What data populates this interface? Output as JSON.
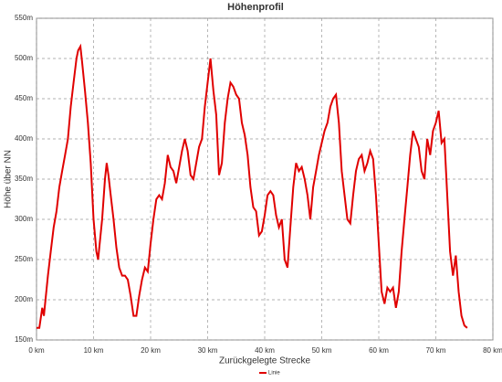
{
  "chart_data": {
    "type": "line",
    "title": "Höhenprofil",
    "x_label": "Zurückgelegte Strecke",
    "y_label": "Höhe über NN",
    "xlim": [
      0,
      80
    ],
    "ylim": [
      150,
      550
    ],
    "xticks": [
      {
        "value": 0,
        "label": "0 km"
      },
      {
        "value": 10,
        "label": "10 km"
      },
      {
        "value": 20,
        "label": "20 km"
      },
      {
        "value": 30,
        "label": "30 km"
      },
      {
        "value": 40,
        "label": "40 km"
      },
      {
        "value": 50,
        "label": "50 km"
      },
      {
        "value": 60,
        "label": "60 km"
      },
      {
        "value": 70,
        "label": "70 km"
      },
      {
        "value": 80,
        "label": "80 km"
      }
    ],
    "yticks": [
      {
        "value": 150,
        "label": "150m"
      },
      {
        "value": 200,
        "label": "200m"
      },
      {
        "value": 250,
        "label": "250m"
      },
      {
        "value": 300,
        "label": "300m"
      },
      {
        "value": 350,
        "label": "350m"
      },
      {
        "value": 400,
        "label": "400m"
      },
      {
        "value": 450,
        "label": "450m"
      },
      {
        "value": 500,
        "label": "500m"
      },
      {
        "value": 550,
        "label": "550m"
      }
    ],
    "grid": true,
    "legend": "bottom",
    "x": [
      0,
      0.5,
      1,
      1.3,
      1.5,
      2,
      2.5,
      3,
      3.5,
      4,
      4.5,
      5,
      5.5,
      6,
      6.5,
      7,
      7.3,
      7.7,
      8,
      8.5,
      9,
      9.5,
      10,
      10.5,
      10.8,
      11,
      11.5,
      12,
      12.3,
      12.6,
      13,
      13.5,
      14,
      14.5,
      15,
      15.5,
      16,
      16.5,
      17,
      17.5,
      18,
      18.5,
      19,
      19.5,
      20,
      20.5,
      21,
      21.5,
      22,
      22.5,
      23,
      23.5,
      24,
      24.5,
      25,
      25.5,
      26,
      26.5,
      27,
      27.5,
      28,
      28.5,
      29,
      29.5,
      30,
      30.5,
      31,
      31.5,
      32,
      32.5,
      33,
      33.5,
      34,
      34.5,
      35,
      35.5,
      36,
      36.5,
      37,
      37.5,
      38,
      38.5,
      39,
      39.5,
      40,
      40.5,
      41,
      41.5,
      42,
      42.5,
      43,
      43.5,
      44,
      44.5,
      45,
      45.5,
      46,
      46.5,
      47,
      47.5,
      48,
      48.5,
      49,
      49.5,
      50,
      50.5,
      51,
      51.5,
      52,
      52.5,
      53,
      53.5,
      54,
      54.5,
      55,
      55.5,
      56,
      56.5,
      57,
      57.5,
      58,
      58.5,
      59,
      59.5,
      60,
      60.5,
      61,
      61.5,
      62,
      62.5,
      63,
      63.5,
      64,
      64.5,
      65,
      65.5,
      66,
      66.5,
      67,
      67.5,
      68,
      68.5,
      69,
      69.5,
      70,
      70.5,
      71,
      71.5,
      72,
      72.5,
      73,
      73.5,
      74,
      74.5,
      75,
      75.5
    ],
    "series": [
      {
        "name": "Linie",
        "color": "#e00000",
        "values": [
          165,
          165,
          190,
          180,
          195,
          230,
          260,
          290,
          310,
          340,
          360,
          380,
          400,
          440,
          470,
          500,
          510,
          515,
          495,
          460,
          420,
          370,
          300,
          260,
          250,
          265,
          300,
          350,
          370,
          355,
          330,
          300,
          265,
          240,
          230,
          230,
          225,
          205,
          180,
          180,
          205,
          225,
          240,
          235,
          270,
          300,
          325,
          330,
          325,
          345,
          380,
          365,
          360,
          345,
          365,
          385,
          400,
          385,
          355,
          350,
          370,
          390,
          400,
          440,
          470,
          500,
          460,
          430,
          355,
          370,
          420,
          450,
          470,
          465,
          455,
          450,
          420,
          405,
          380,
          340,
          315,
          310,
          280,
          285,
          305,
          330,
          335,
          330,
          305,
          290,
          300,
          250,
          240,
          290,
          340,
          370,
          360,
          365,
          350,
          330,
          300,
          340,
          360,
          380,
          395,
          410,
          420,
          440,
          450,
          455,
          420,
          360,
          330,
          300,
          295,
          330,
          360,
          375,
          380,
          360,
          370,
          385,
          375,
          330,
          270,
          210,
          195,
          215,
          210,
          215,
          190,
          210,
          260,
          300,
          340,
          380,
          410,
          400,
          390,
          360,
          350,
          400,
          380,
          410,
          420,
          435,
          395,
          400,
          330,
          260,
          230,
          255,
          210,
          180,
          168,
          165
        ]
      }
    ]
  }
}
